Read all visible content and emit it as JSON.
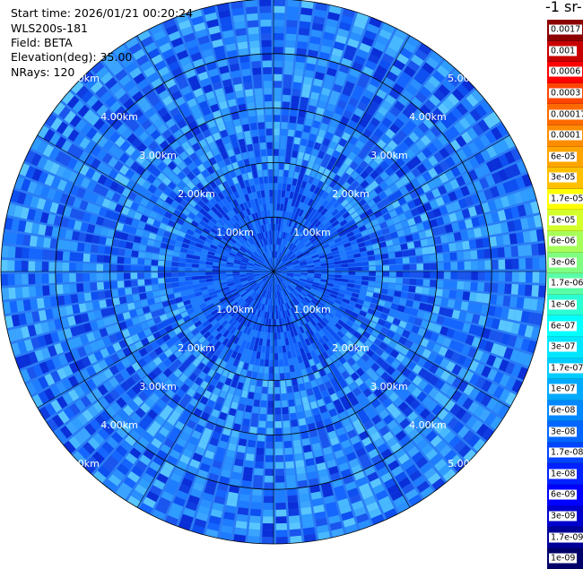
{
  "header": {
    "start_time": "Start time: 2026/01/21 00:20:24",
    "instrument": "WLS200s-181",
    "field": "Field: BETA",
    "elevation": "Elevation(deg): 35.00",
    "nrays": "NRays: 120"
  },
  "colorbar": {
    "title": "-1 sr-",
    "levels": [
      {
        "label": "0.0017",
        "color": "#8b0000"
      },
      {
        "label": "0.001",
        "color": "#c80000"
      },
      {
        "label": "0.0006",
        "color": "#ff0000"
      },
      {
        "label": "0.0003",
        "color": "#ff4500"
      },
      {
        "label": "0.00017",
        "color": "#ff6a00"
      },
      {
        "label": "0.0001",
        "color": "#ff8c00"
      },
      {
        "label": "6e-05",
        "color": "#ffa500"
      },
      {
        "label": "3e-05",
        "color": "#ffc000"
      },
      {
        "label": "1.7e-05",
        "color": "#ffff00"
      },
      {
        "label": "1e-05",
        "color": "#d4ff2a"
      },
      {
        "label": "6e-06",
        "color": "#a6ff59"
      },
      {
        "label": "3e-06",
        "color": "#7fff7f"
      },
      {
        "label": "1.7e-06",
        "color": "#59ffa6"
      },
      {
        "label": "1e-06",
        "color": "#2affd4"
      },
      {
        "label": "6e-07",
        "color": "#00ffff"
      },
      {
        "label": "3e-07",
        "color": "#00e6ff"
      },
      {
        "label": "1.7e-07",
        "color": "#00ccff"
      },
      {
        "label": "1e-07",
        "color": "#00aaff"
      },
      {
        "label": "6e-08",
        "color": "#0088ff"
      },
      {
        "label": "3e-08",
        "color": "#0066ff"
      },
      {
        "label": "1.7e-08",
        "color": "#0044ff"
      },
      {
        "label": "1e-08",
        "color": "#0022ff"
      },
      {
        "label": "6e-09",
        "color": "#0000ff"
      },
      {
        "label": "3e-09",
        "color": "#0000cc"
      },
      {
        "label": "1.7e-09",
        "color": "#000099"
      },
      {
        "label": "1e-09",
        "color": "#00006a"
      }
    ]
  },
  "ppi": {
    "range_labels": [
      "1.00km",
      "2.00km",
      "3.00km",
      "4.00km",
      "5.00km"
    ],
    "range_km": [
      1,
      2,
      3,
      4,
      5
    ],
    "nrays": 120,
    "colors": {
      "background_field": "#1e90ff",
      "ring": "#000000",
      "label": "#ffffff"
    }
  }
}
